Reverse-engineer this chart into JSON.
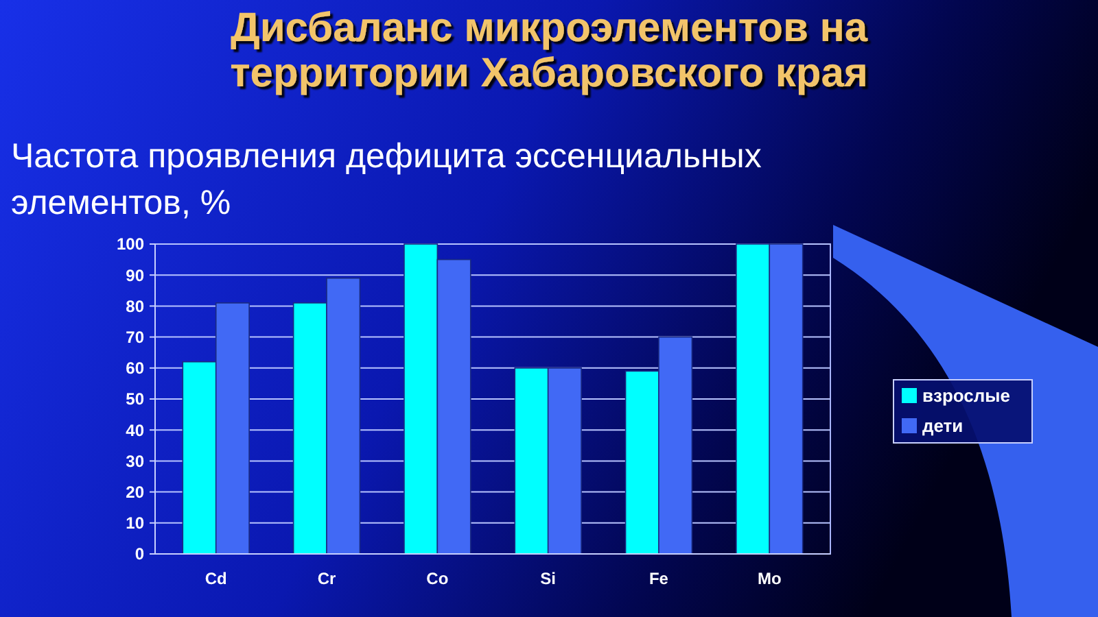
{
  "chart_data": {
    "type": "bar",
    "title": "Дисбаланс микроэлементов на территории Хабаровского края",
    "subtitle": "Частота проявления дефицита эссенциальных элементов, %",
    "categories": [
      "Cd",
      "Cr",
      "Co",
      "Si",
      "Fe",
      "Mo"
    ],
    "series": [
      {
        "name": "взрослые",
        "color": "#00ffff",
        "values": [
          62,
          81,
          100,
          60,
          59,
          100
        ]
      },
      {
        "name": "дети",
        "color": "#4169f5",
        "values": [
          81,
          89,
          95,
          60,
          70,
          100
        ]
      }
    ],
    "ylim": [
      0,
      100
    ],
    "yticks": [
      0,
      10,
      20,
      30,
      40,
      50,
      60,
      70,
      80,
      90,
      100
    ],
    "grid": "y",
    "legend": "right"
  }
}
